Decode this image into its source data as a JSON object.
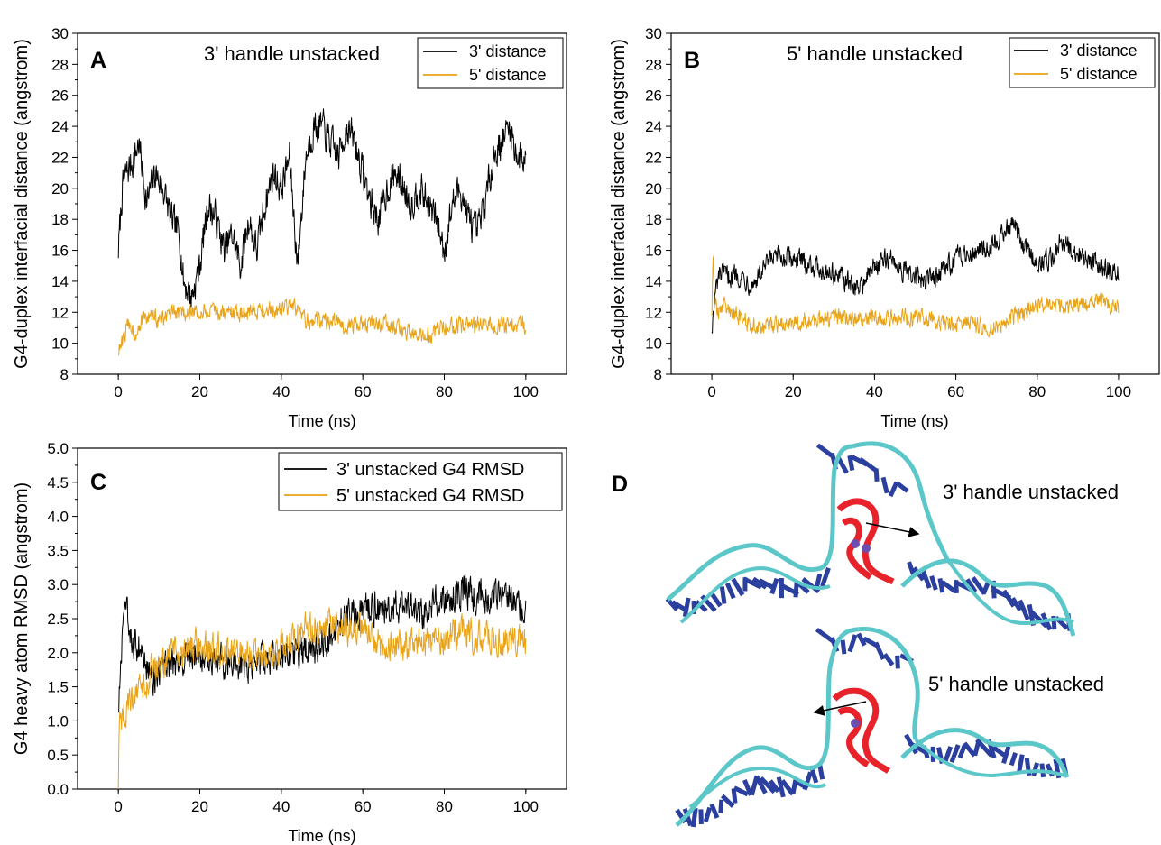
{
  "colors": {
    "black_series": "#000000",
    "orange_series": "#e8a317",
    "dna_cyan": "#5cc7c9",
    "dna_blue": "#2b3f9e",
    "g4_red": "#e8222a"
  },
  "chart_data": [
    {
      "id": "A",
      "type": "line",
      "panel_letter": "A",
      "annotation": "3' handle unstacked",
      "xlabel": "Time (ns)",
      "ylabel": "G4-duplex interfacial distance (angstrom)",
      "xlim": [
        -10,
        110
      ],
      "ylim": [
        8,
        30
      ],
      "xticks": [
        0,
        20,
        40,
        60,
        80,
        100
      ],
      "yticks": [
        8,
        10,
        12,
        14,
        16,
        18,
        20,
        22,
        24,
        26,
        28,
        30
      ],
      "legend": "top-right",
      "series": [
        {
          "name": "3' distance",
          "color": "#000000",
          "x": [
            0,
            1,
            2,
            4,
            5,
            7,
            9,
            11,
            13,
            15,
            16,
            18,
            20,
            22,
            24,
            26,
            28,
            30,
            32,
            34,
            36,
            38,
            40,
            42,
            44,
            46,
            48,
            50,
            52,
            54,
            56,
            58,
            60,
            62,
            64,
            66,
            68,
            70,
            72,
            74,
            76,
            78,
            80,
            82,
            84,
            86,
            88,
            90,
            92,
            94,
            96,
            98,
            100
          ],
          "y": [
            16,
            20,
            21,
            22,
            23,
            19,
            21,
            20,
            18,
            17,
            14,
            13,
            15,
            19,
            18,
            16,
            17,
            15,
            18,
            16,
            19,
            21,
            20,
            22,
            15,
            22,
            24,
            24,
            23,
            22,
            24,
            23,
            21,
            19,
            18,
            20,
            21,
            20,
            19,
            20,
            19,
            18,
            16,
            19,
            20,
            18,
            17,
            19,
            22,
            23,
            24,
            22,
            22
          ],
          "noise": 1.6
        },
        {
          "name": "5' distance",
          "color": "#e8a317",
          "x": [
            0,
            1,
            2,
            3,
            4,
            5,
            6,
            8,
            10,
            15,
            20,
            25,
            30,
            35,
            40,
            43,
            45,
            50,
            55,
            60,
            65,
            70,
            75,
            80,
            85,
            90,
            95,
            100
          ],
          "y": [
            9.5,
            10,
            11,
            11.3,
            10.5,
            11.2,
            11.5,
            11.8,
            11.5,
            12,
            12,
            12,
            12,
            12.2,
            12.1,
            12.5,
            11.5,
            11.5,
            11.2,
            11.2,
            11.3,
            10.8,
            10.3,
            11,
            11.2,
            11.2,
            11.1,
            11.2
          ],
          "noise": 0.8
        }
      ]
    },
    {
      "id": "B",
      "type": "line",
      "panel_letter": "B",
      "annotation": "5' handle unstacked",
      "xlabel": "Time (ns)",
      "ylabel": "G4-duplex interfacial distance (angstrom)",
      "xlim": [
        -10,
        110
      ],
      "ylim": [
        8,
        30
      ],
      "xticks": [
        0,
        20,
        40,
        60,
        80,
        100
      ],
      "yticks": [
        8,
        10,
        12,
        14,
        16,
        18,
        20,
        22,
        24,
        26,
        28,
        30
      ],
      "legend": "top-right",
      "series": [
        {
          "name": "3' distance",
          "color": "#000000",
          "x": [
            0,
            1,
            2,
            4,
            6,
            8,
            10,
            12,
            15,
            20,
            25,
            30,
            33,
            36,
            40,
            44,
            48,
            52,
            56,
            60,
            64,
            68,
            72,
            74,
            76,
            80,
            84,
            86,
            88,
            92,
            96,
            100
          ],
          "y": [
            11,
            13.5,
            14.5,
            14.3,
            14.5,
            14.2,
            13.8,
            14.5,
            15.5,
            15.5,
            15,
            14.5,
            14,
            13.5,
            15,
            15.5,
            14.5,
            14,
            14.5,
            15.5,
            16,
            16.2,
            17.2,
            17.8,
            16.5,
            15.2,
            15.5,
            17,
            16,
            15.5,
            15,
            14.5
          ],
          "noise": 1.0
        },
        {
          "name": "5' distance",
          "color": "#e8a317",
          "x": [
            0,
            0.3,
            0.7,
            1.5,
            3,
            5,
            8,
            10,
            15,
            20,
            25,
            30,
            35,
            40,
            45,
            50,
            55,
            60,
            65,
            70,
            75,
            80,
            85,
            90,
            95,
            100
          ],
          "y": [
            12,
            16.5,
            13,
            12,
            12.5,
            12,
            11.5,
            11,
            11.2,
            11.3,
            11.5,
            11.6,
            11.5,
            11.8,
            11.6,
            11.7,
            11.4,
            11.3,
            11.2,
            11.1,
            11.8,
            12.5,
            12.3,
            12.5,
            12.8,
            12.3
          ],
          "noise": 0.8
        }
      ]
    },
    {
      "id": "C",
      "type": "line",
      "panel_letter": "C",
      "xlabel": "Time (ns)",
      "ylabel": "G4 heavy atom RMSD (angstrom)",
      "xlim": [
        -10,
        110
      ],
      "ylim": [
        0,
        5
      ],
      "xticks": [
        0,
        20,
        40,
        60,
        80,
        100
      ],
      "yticks": [
        0.0,
        0.5,
        1.0,
        1.5,
        2.0,
        2.5,
        3.0,
        3.5,
        4.0,
        4.5,
        5.0
      ],
      "legend": "top-right",
      "series": [
        {
          "name": "3' unstacked G4 RMSD",
          "color": "#000000",
          "x": [
            0,
            0.5,
            1,
            2,
            3,
            5,
            8,
            12,
            16,
            20,
            25,
            30,
            35,
            40,
            45,
            50,
            55,
            60,
            65,
            70,
            75,
            80,
            85,
            90,
            95,
            100
          ],
          "y": [
            1.2,
            1.6,
            2.3,
            2.6,
            2.2,
            2.1,
            1.6,
            1.8,
            1.9,
            2.0,
            1.9,
            1.8,
            1.9,
            1.9,
            2.0,
            2.1,
            2.5,
            2.6,
            2.7,
            2.7,
            2.6,
            2.8,
            2.9,
            2.8,
            2.9,
            2.6
          ],
          "noise": 0.35
        },
        {
          "name": "5' unstacked G4 RMSD",
          "color": "#e8a317",
          "x": [
            0,
            0.2,
            0.5,
            1,
            3,
            5,
            8,
            12,
            16,
            20,
            25,
            30,
            35,
            40,
            45,
            50,
            55,
            60,
            65,
            70,
            75,
            80,
            85,
            90,
            95,
            100
          ],
          "y": [
            0,
            1.0,
            1.1,
            1.1,
            1.2,
            1.4,
            1.7,
            1.9,
            2.0,
            2.1,
            2.0,
            2.0,
            2.0,
            2.1,
            2.3,
            2.4,
            2.4,
            2.3,
            2.1,
            2.1,
            2.2,
            2.2,
            2.3,
            2.2,
            2.2,
            2.2
          ],
          "noise": 0.35
        }
      ]
    }
  ],
  "panel_d": {
    "letter": "D",
    "top_label": "3' handle unstacked",
    "bottom_label": "5' handle unstacked"
  }
}
